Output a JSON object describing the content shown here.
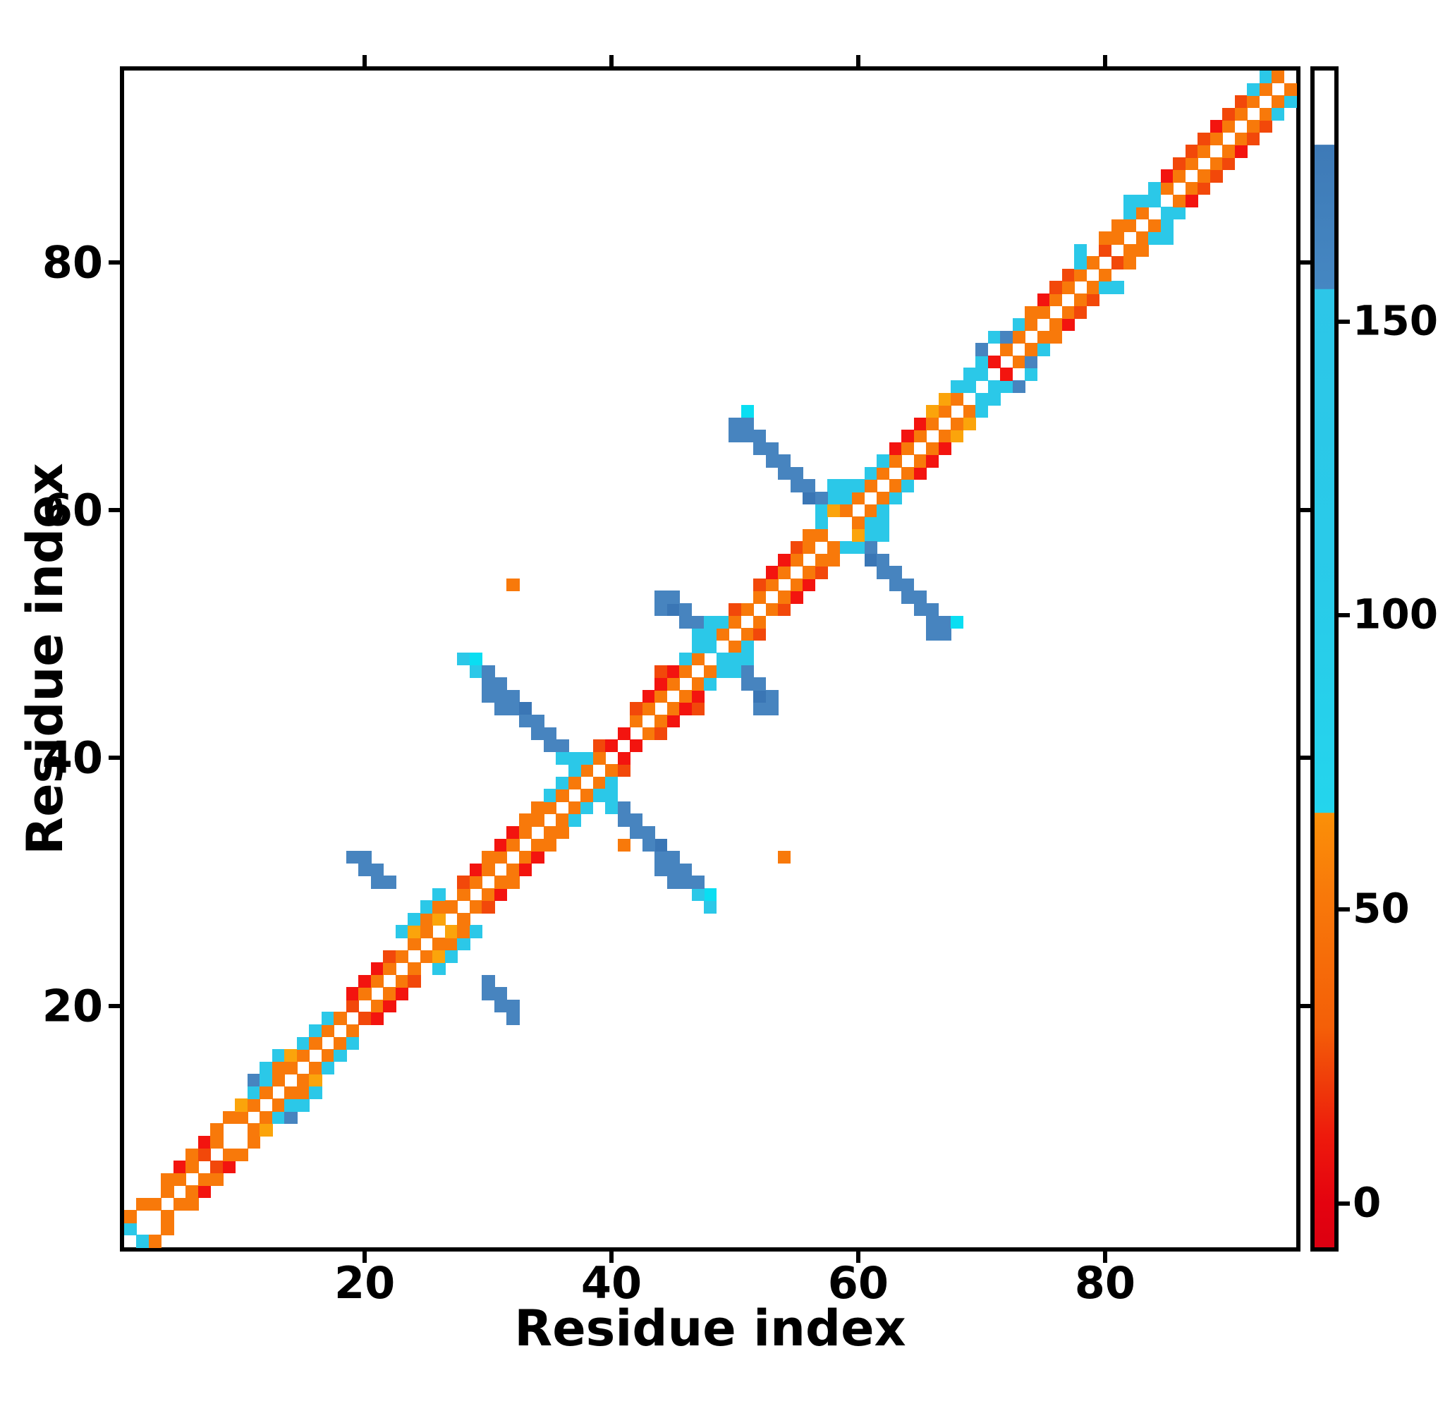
{
  "figure": {
    "kind": "protein residue contact-map heatmap",
    "background": "#ffffff",
    "x_title": "Residue index",
    "y_title": "Residue index"
  },
  "chart_data": {
    "type": "heatmap",
    "title": "",
    "xlabel": "Residue index",
    "ylabel": "Residue index",
    "xlim": [
      0.5,
      95.5
    ],
    "ylim": [
      0.5,
      95.5
    ],
    "n_residues": 95,
    "x_tick_values": [
      20,
      40,
      60,
      80
    ],
    "x_tick_labels": [
      "20",
      "40",
      "60",
      "80"
    ],
    "y_tick_values": [
      20,
      40,
      60,
      80
    ],
    "y_tick_labels": [
      "20",
      "40",
      "60",
      "80"
    ],
    "grid": false,
    "legend_position": "none",
    "colorbar": {
      "side": "right",
      "tick_values": [
        0,
        50,
        100,
        150
      ],
      "tick_labels": [
        "0",
        "50",
        "100",
        "150"
      ],
      "value_min": -7,
      "value_max": 193,
      "segments_top_to_bottom": [
        {
          "color_name": "white",
          "hex": "#ffffff",
          "value_range": [
            180,
            193
          ]
        },
        {
          "color_name": "steel-blue",
          "hex": "#4180bc",
          "value_range": [
            156,
            180
          ]
        },
        {
          "color_name": "cyan",
          "hex": "#2bc8e8",
          "value_range": [
            66,
            156
          ]
        },
        {
          "color_name": "orange",
          "hex": "#f8790a",
          "value_range": [
            30,
            66
          ]
        },
        {
          "color_name": "red",
          "hex": "#e8100e",
          "value_range": [
            -7,
            30
          ]
        }
      ]
    },
    "palette": {
      "O": {
        "hex": "#f8790a",
        "name": "orange",
        "approx_value": 45
      },
      "Y": {
        "hex": "#fba40b",
        "name": "bright-orange",
        "approx_value": 58
      },
      "D": {
        "hex": "#f2480a",
        "name": "red-orange",
        "approx_value": 30
      },
      "R": {
        "hex": "#f3140f",
        "name": "red",
        "approx_value": 5
      },
      "C": {
        "hex": "#2bc8e8",
        "name": "cyan",
        "approx_value": 100
      },
      "A": {
        "hex": "#0adef2",
        "name": "bright-aqua",
        "approx_value": 72
      },
      "B": {
        "hex": "#4784bf",
        "name": "steel-blue",
        "approx_value": 165
      },
      "E": {
        "hex": "#3a76b5",
        "name": "dark-steel-blue",
        "approx_value": 172
      }
    },
    "cells_symmetric_pairs": [
      [
        1,
        2,
        "C"
      ],
      [
        1,
        3,
        "O"
      ],
      [
        2,
        4,
        "O"
      ],
      [
        3,
        4,
        "O"
      ],
      [
        4,
        5,
        "O"
      ],
      [
        4,
        6,
        "O"
      ],
      [
        5,
        6,
        "O"
      ],
      [
        5,
        7,
        "R"
      ],
      [
        6,
        7,
        "O"
      ],
      [
        6,
        8,
        "O"
      ],
      [
        7,
        8,
        "D"
      ],
      [
        7,
        9,
        "R"
      ],
      [
        8,
        9,
        "O"
      ],
      [
        8,
        10,
        "O"
      ],
      [
        9,
        11,
        "O"
      ],
      [
        10,
        11,
        "O"
      ],
      [
        10,
        12,
        "Y"
      ],
      [
        11,
        12,
        "O"
      ],
      [
        11,
        13,
        "C"
      ],
      [
        11,
        14,
        "B"
      ],
      [
        12,
        13,
        "O"
      ],
      [
        12,
        14,
        "C"
      ],
      [
        12,
        15,
        "C"
      ],
      [
        13,
        14,
        "O"
      ],
      [
        13,
        15,
        "O"
      ],
      [
        13,
        16,
        "C"
      ],
      [
        14,
        15,
        "O"
      ],
      [
        14,
        16,
        "Y"
      ],
      [
        15,
        16,
        "O"
      ],
      [
        15,
        17,
        "C"
      ],
      [
        16,
        17,
        "O"
      ],
      [
        16,
        18,
        "C"
      ],
      [
        17,
        18,
        "O"
      ],
      [
        17,
        19,
        "C"
      ],
      [
        18,
        19,
        "O"
      ],
      [
        19,
        20,
        "D"
      ],
      [
        19,
        21,
        "R"
      ],
      [
        20,
        21,
        "O"
      ],
      [
        20,
        22,
        "R"
      ],
      [
        21,
        22,
        "O"
      ],
      [
        21,
        23,
        "R"
      ],
      [
        22,
        23,
        "O"
      ],
      [
        22,
        24,
        "D"
      ],
      [
        23,
        24,
        "O"
      ],
      [
        19,
        32,
        "B"
      ],
      [
        20,
        32,
        "B"
      ],
      [
        20,
        31,
        "B"
      ],
      [
        21,
        31,
        "B"
      ],
      [
        21,
        30,
        "B"
      ],
      [
        22,
        30,
        "B"
      ],
      [
        23,
        26,
        "C"
      ],
      [
        24,
        25,
        "O"
      ],
      [
        24,
        26,
        "Y"
      ],
      [
        24,
        27,
        "C"
      ],
      [
        25,
        26,
        "O"
      ],
      [
        25,
        27,
        "O"
      ],
      [
        25,
        28,
        "C"
      ],
      [
        26,
        27,
        "Y"
      ],
      [
        26,
        28,
        "O"
      ],
      [
        26,
        29,
        "C"
      ],
      [
        27,
        28,
        "O"
      ],
      [
        28,
        29,
        "O"
      ],
      [
        28,
        30,
        "D"
      ],
      [
        29,
        30,
        "O"
      ],
      [
        29,
        31,
        "R"
      ],
      [
        30,
        31,
        "O"
      ],
      [
        30,
        32,
        "O"
      ],
      [
        31,
        32,
        "O"
      ],
      [
        31,
        33,
        "R"
      ],
      [
        32,
        33,
        "O"
      ],
      [
        32,
        34,
        "R"
      ],
      [
        33,
        34,
        "O"
      ],
      [
        33,
        35,
        "O"
      ],
      [
        34,
        35,
        "O"
      ],
      [
        34,
        36,
        "O"
      ],
      [
        35,
        36,
        "O"
      ],
      [
        35,
        37,
        "C"
      ],
      [
        36,
        37,
        "O"
      ],
      [
        36,
        38,
        "C"
      ],
      [
        37,
        38,
        "O"
      ],
      [
        38,
        39,
        "O"
      ],
      [
        38,
        40,
        "C"
      ],
      [
        39,
        40,
        "O"
      ],
      [
        39,
        41,
        "D"
      ],
      [
        28,
        48,
        "C"
      ],
      [
        29,
        48,
        "A"
      ],
      [
        29,
        47,
        "C"
      ],
      [
        30,
        47,
        "B"
      ],
      [
        30,
        46,
        "B"
      ],
      [
        30,
        45,
        "B"
      ],
      [
        31,
        46,
        "B"
      ],
      [
        31,
        45,
        "B"
      ],
      [
        31,
        44,
        "B"
      ],
      [
        32,
        45,
        "B"
      ],
      [
        32,
        44,
        "B"
      ],
      [
        33,
        44,
        "E"
      ],
      [
        33,
        43,
        "B"
      ],
      [
        34,
        43,
        "B"
      ],
      [
        34,
        42,
        "B"
      ],
      [
        35,
        42,
        "B"
      ],
      [
        35,
        41,
        "B"
      ],
      [
        36,
        41,
        "B"
      ],
      [
        36,
        40,
        "C"
      ],
      [
        37,
        40,
        "C"
      ],
      [
        37,
        39,
        "C"
      ],
      [
        32,
        54,
        "O"
      ],
      [
        40,
        41,
        "R"
      ],
      [
        41,
        42,
        "R"
      ],
      [
        42,
        43,
        "O"
      ],
      [
        42,
        44,
        "D"
      ],
      [
        43,
        44,
        "O"
      ],
      [
        43,
        45,
        "R"
      ],
      [
        44,
        45,
        "O"
      ],
      [
        44,
        46,
        "R"
      ],
      [
        44,
        47,
        "D"
      ],
      [
        45,
        46,
        "O"
      ],
      [
        45,
        47,
        "R"
      ],
      [
        46,
        47,
        "O"
      ],
      [
        46,
        48,
        "C"
      ],
      [
        47,
        48,
        "O"
      ],
      [
        47,
        49,
        "C"
      ],
      [
        48,
        49,
        "C"
      ],
      [
        49,
        50,
        "O"
      ],
      [
        49,
        51,
        "C"
      ],
      [
        50,
        51,
        "O"
      ],
      [
        50,
        52,
        "D"
      ],
      [
        51,
        52,
        "O"
      ],
      [
        44,
        52,
        "B"
      ],
      [
        44,
        53,
        "B"
      ],
      [
        45,
        52,
        "E"
      ],
      [
        45,
        53,
        "B"
      ],
      [
        46,
        51,
        "B"
      ],
      [
        46,
        52,
        "B"
      ],
      [
        47,
        50,
        "C"
      ],
      [
        47,
        51,
        "B"
      ],
      [
        48,
        50,
        "C"
      ],
      [
        48,
        51,
        "C"
      ],
      [
        52,
        53,
        "O"
      ],
      [
        52,
        54,
        "D"
      ],
      [
        53,
        54,
        "O"
      ],
      [
        53,
        55,
        "R"
      ],
      [
        54,
        55,
        "O"
      ],
      [
        54,
        56,
        "R"
      ],
      [
        55,
        56,
        "O"
      ],
      [
        55,
        57,
        "D"
      ],
      [
        56,
        57,
        "O"
      ],
      [
        56,
        58,
        "O"
      ],
      [
        57,
        58,
        "O"
      ],
      [
        57,
        59,
        "C"
      ],
      [
        57,
        60,
        "C"
      ],
      [
        58,
        60,
        "Y"
      ],
      [
        58,
        61,
        "C"
      ],
      [
        58,
        62,
        "C"
      ],
      [
        59,
        60,
        "O"
      ],
      [
        59,
        61,
        "C"
      ],
      [
        59,
        62,
        "C"
      ],
      [
        60,
        61,
        "O"
      ],
      [
        60,
        62,
        "C"
      ],
      [
        61,
        62,
        "O"
      ],
      [
        61,
        63,
        "C"
      ],
      [
        62,
        63,
        "O"
      ],
      [
        62,
        64,
        "C"
      ],
      [
        50,
        66,
        "B"
      ],
      [
        50,
        67,
        "B"
      ],
      [
        51,
        66,
        "B"
      ],
      [
        51,
        67,
        "B"
      ],
      [
        51,
        68,
        "A"
      ],
      [
        52,
        65,
        "B"
      ],
      [
        52,
        66,
        "B"
      ],
      [
        53,
        64,
        "B"
      ],
      [
        53,
        65,
        "B"
      ],
      [
        54,
        63,
        "B"
      ],
      [
        54,
        64,
        "B"
      ],
      [
        55,
        62,
        "B"
      ],
      [
        55,
        63,
        "B"
      ],
      [
        56,
        61,
        "E"
      ],
      [
        56,
        62,
        "B"
      ],
      [
        57,
        61,
        "B"
      ],
      [
        63,
        64,
        "O"
      ],
      [
        63,
        65,
        "R"
      ],
      [
        64,
        65,
        "O"
      ],
      [
        64,
        66,
        "R"
      ],
      [
        65,
        66,
        "O"
      ],
      [
        65,
        67,
        "R"
      ],
      [
        66,
        67,
        "O"
      ],
      [
        66,
        68,
        "Y"
      ],
      [
        67,
        68,
        "O"
      ],
      [
        67,
        69,
        "Y"
      ],
      [
        68,
        69,
        "O"
      ],
      [
        68,
        70,
        "C"
      ],
      [
        69,
        70,
        "C"
      ],
      [
        69,
        71,
        "C"
      ],
      [
        70,
        71,
        "C"
      ],
      [
        70,
        72,
        "C"
      ],
      [
        71,
        72,
        "R"
      ],
      [
        70,
        73,
        "B"
      ],
      [
        71,
        74,
        "C"
      ],
      [
        72,
        73,
        "O"
      ],
      [
        72,
        74,
        "B"
      ],
      [
        73,
        74,
        "O"
      ],
      [
        73,
        75,
        "C"
      ],
      [
        74,
        75,
        "O"
      ],
      [
        74,
        76,
        "O"
      ],
      [
        75,
        76,
        "O"
      ],
      [
        75,
        77,
        "R"
      ],
      [
        76,
        77,
        "O"
      ],
      [
        76,
        78,
        "D"
      ],
      [
        77,
        78,
        "O"
      ],
      [
        77,
        79,
        "D"
      ],
      [
        78,
        79,
        "O"
      ],
      [
        78,
        80,
        "C"
      ],
      [
        78,
        81,
        "C"
      ],
      [
        79,
        80,
        "O"
      ],
      [
        80,
        81,
        "D"
      ],
      [
        80,
        82,
        "O"
      ],
      [
        81,
        82,
        "O"
      ],
      [
        81,
        83,
        "O"
      ],
      [
        82,
        83,
        "O"
      ],
      [
        82,
        84,
        "C"
      ],
      [
        82,
        85,
        "C"
      ],
      [
        83,
        84,
        "O"
      ],
      [
        83,
        85,
        "C"
      ],
      [
        84,
        85,
        "C"
      ],
      [
        84,
        86,
        "C"
      ],
      [
        85,
        86,
        "O"
      ],
      [
        85,
        87,
        "R"
      ],
      [
        86,
        87,
        "O"
      ],
      [
        86,
        88,
        "D"
      ],
      [
        87,
        88,
        "O"
      ],
      [
        87,
        89,
        "D"
      ],
      [
        88,
        89,
        "O"
      ],
      [
        88,
        90,
        "D"
      ],
      [
        89,
        90,
        "O"
      ],
      [
        89,
        91,
        "R"
      ],
      [
        90,
        91,
        "O"
      ],
      [
        90,
        92,
        "D"
      ],
      [
        91,
        92,
        "O"
      ],
      [
        91,
        93,
        "D"
      ],
      [
        92,
        93,
        "O"
      ],
      [
        92,
        94,
        "C"
      ],
      [
        93,
        94,
        "O"
      ],
      [
        93,
        95,
        "C"
      ],
      [
        94,
        95,
        "O"
      ]
    ],
    "cells_asymmetric": [
      [
        41,
        33,
        "O"
      ]
    ]
  }
}
